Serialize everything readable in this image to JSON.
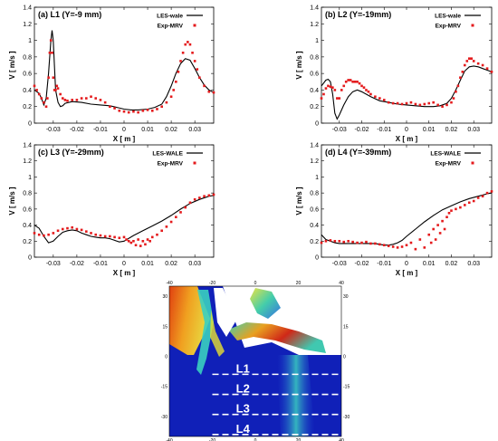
{
  "chart_data": [
    {
      "type": "line",
      "title": "(a) L1 (Y=-9 mm)",
      "xlabel": "X [ m ]",
      "ylabel": "V [ m/s ]",
      "xlim": [
        -0.038,
        0.038
      ],
      "ylim": [
        0,
        1.4
      ],
      "xticks": [
        -0.03,
        -0.02,
        -0.01,
        0,
        0.01,
        0.02,
        0.03
      ],
      "xtick_labels": [
        "-0.03",
        "-0.02",
        "-0.01",
        "0",
        "0.01",
        "0.02",
        "0.03"
      ],
      "yticks": [
        0,
        0.2,
        0.4,
        0.6,
        0.8,
        1,
        1.2,
        1.4
      ],
      "ytick_labels": [
        "0",
        "0.2",
        "0.4",
        "0.6",
        "0.8",
        "1",
        "1.2",
        "1.4"
      ],
      "legend_position": "top-right",
      "series": [
        {
          "name": "LES-wale",
          "style": "line",
          "color": "#000000",
          "x": [
            -0.038,
            -0.036,
            -0.035,
            -0.034,
            -0.033,
            -0.032,
            -0.031,
            -0.0305,
            -0.03,
            -0.0295,
            -0.029,
            -0.028,
            -0.027,
            -0.026,
            -0.025,
            -0.022,
            -0.018,
            -0.014,
            -0.01,
            -0.006,
            -0.003,
            0,
            0.003,
            0.006,
            0.01,
            0.013,
            0.016,
            0.018,
            0.02,
            0.022,
            0.024,
            0.026,
            0.028,
            0.03,
            0.032,
            0.034,
            0.036,
            0.038
          ],
          "y": [
            0.4,
            0.36,
            0.3,
            0.22,
            0.3,
            0.6,
            1.0,
            1.12,
            1.0,
            0.7,
            0.4,
            0.25,
            0.2,
            0.21,
            0.24,
            0.26,
            0.25,
            0.23,
            0.22,
            0.21,
            0.19,
            0.17,
            0.16,
            0.16,
            0.17,
            0.19,
            0.23,
            0.32,
            0.45,
            0.6,
            0.72,
            0.78,
            0.76,
            0.66,
            0.55,
            0.46,
            0.4,
            0.37
          ]
        },
        {
          "name": "Exp-MRV",
          "style": "scatter",
          "color": "#e41a1c",
          "x": [
            -0.038,
            -0.037,
            -0.036,
            -0.035,
            -0.034,
            -0.033,
            -0.0325,
            -0.032,
            -0.0315,
            -0.031,
            -0.0305,
            -0.03,
            -0.0295,
            -0.029,
            -0.0285,
            -0.028,
            -0.027,
            -0.026,
            -0.025,
            -0.024,
            -0.022,
            -0.02,
            -0.018,
            -0.016,
            -0.014,
            -0.012,
            -0.01,
            -0.008,
            -0.006,
            -0.004,
            -0.002,
            0,
            0.002,
            0.004,
            0.006,
            0.008,
            0.01,
            0.012,
            0.014,
            0.016,
            0.018,
            0.02,
            0.021,
            0.022,
            0.023,
            0.024,
            0.025,
            0.026,
            0.027,
            0.028,
            0.029,
            0.03,
            0.031,
            0.032,
            0.034,
            0.036,
            0.038
          ],
          "y": [
            0.45,
            0.4,
            0.35,
            0.3,
            0.25,
            0.2,
            0.3,
            0.55,
            0.85,
            1.0,
            0.85,
            0.55,
            0.4,
            0.4,
            0.45,
            0.42,
            0.35,
            0.3,
            0.28,
            0.27,
            0.28,
            0.28,
            0.3,
            0.3,
            0.32,
            0.3,
            0.28,
            0.25,
            0.2,
            0.18,
            0.15,
            0.14,
            0.13,
            0.14,
            0.13,
            0.15,
            0.16,
            0.15,
            0.17,
            0.2,
            0.25,
            0.32,
            0.4,
            0.5,
            0.62,
            0.75,
            0.85,
            0.95,
            0.98,
            0.95,
            0.85,
            0.75,
            0.65,
            0.55,
            0.45,
            0.38,
            0.37
          ]
        }
      ]
    },
    {
      "type": "line",
      "title": "(b) L2 (Y=-19mm)",
      "xlabel": "X [ m ]",
      "ylabel": "V [ m/s ]",
      "xlim": [
        -0.038,
        0.038
      ],
      "ylim": [
        0,
        1.4
      ],
      "xticks": [
        -0.03,
        -0.02,
        -0.01,
        0,
        0.01,
        0.02,
        0.03
      ],
      "xtick_labels": [
        "-0.03",
        "-0.02",
        "-0.01",
        "0",
        "0.01",
        "0.02",
        "0.03"
      ],
      "yticks": [
        0,
        0.2,
        0.4,
        0.6,
        0.8,
        1,
        1.2,
        1.4
      ],
      "ytick_labels": [
        "0",
        "0.2",
        "0.4",
        "0.6",
        "0.8",
        "1",
        "1.2",
        "1.4"
      ],
      "legend_position": "top-right",
      "series": [
        {
          "name": "LES-wale",
          "style": "line",
          "color": "#000000",
          "x": [
            -0.038,
            -0.036,
            -0.035,
            -0.034,
            -0.033,
            -0.032,
            -0.031,
            -0.03,
            -0.028,
            -0.026,
            -0.024,
            -0.022,
            -0.02,
            -0.016,
            -0.012,
            -0.008,
            -0.004,
            0,
            0.004,
            0.008,
            0.012,
            0.015,
            0.018,
            0.02,
            0.022,
            0.024,
            0.026,
            0.028,
            0.03,
            0.032,
            0.034,
            0.036,
            0.038
          ],
          "y": [
            0.45,
            0.52,
            0.53,
            0.5,
            0.35,
            0.12,
            0.05,
            0.1,
            0.22,
            0.32,
            0.38,
            0.4,
            0.38,
            0.32,
            0.27,
            0.25,
            0.23,
            0.22,
            0.21,
            0.2,
            0.2,
            0.21,
            0.24,
            0.3,
            0.4,
            0.52,
            0.63,
            0.68,
            0.69,
            0.68,
            0.66,
            0.64,
            0.62
          ]
        },
        {
          "name": "Exp-MRV",
          "style": "scatter",
          "color": "#e41a1c",
          "x": [
            -0.038,
            -0.037,
            -0.036,
            -0.035,
            -0.034,
            -0.033,
            -0.032,
            -0.031,
            -0.03,
            -0.029,
            -0.028,
            -0.027,
            -0.026,
            -0.025,
            -0.024,
            -0.023,
            -0.022,
            -0.021,
            -0.02,
            -0.019,
            -0.018,
            -0.017,
            -0.016,
            -0.014,
            -0.012,
            -0.01,
            -0.008,
            -0.006,
            -0.004,
            -0.002,
            0,
            0.002,
            0.004,
            0.006,
            0.008,
            0.01,
            0.012,
            0.014,
            0.016,
            0.018,
            0.02,
            0.021,
            0.022,
            0.023,
            0.024,
            0.025,
            0.026,
            0.027,
            0.028,
            0.029,
            0.03,
            0.032,
            0.034,
            0.036,
            0.038
          ],
          "y": [
            0.3,
            0.35,
            0.42,
            0.45,
            0.44,
            0.43,
            0.4,
            0.3,
            0.3,
            0.4,
            0.45,
            0.5,
            0.52,
            0.52,
            0.5,
            0.5,
            0.5,
            0.48,
            0.45,
            0.43,
            0.4,
            0.38,
            0.35,
            0.32,
            0.3,
            0.28,
            0.25,
            0.24,
            0.24,
            0.23,
            0.24,
            0.25,
            0.23,
            0.22,
            0.23,
            0.24,
            0.25,
            0.22,
            0.2,
            0.22,
            0.25,
            0.3,
            0.38,
            0.45,
            0.55,
            0.62,
            0.7,
            0.75,
            0.78,
            0.78,
            0.75,
            0.72,
            0.7,
            0.66,
            0.62
          ]
        }
      ]
    },
    {
      "type": "line",
      "title": "(c) L3 (Y=-29mm)",
      "xlabel": "X [ m ]",
      "ylabel": "V [ m/s ]",
      "xlim": [
        -0.038,
        0.038
      ],
      "ylim": [
        0,
        1.4
      ],
      "xticks": [
        -0.03,
        -0.02,
        -0.01,
        0,
        0.01,
        0.02,
        0.03
      ],
      "xtick_labels": [
        "-0.03",
        "-0.02",
        "-0.01",
        "0",
        "0.01",
        "0.02",
        "0.03"
      ],
      "yticks": [
        0,
        0.2,
        0.4,
        0.6,
        0.8,
        1,
        1.2,
        1.4
      ],
      "ytick_labels": [
        "0",
        "0.2",
        "0.4",
        "0.6",
        "0.8",
        "1",
        "1.2",
        "1.4"
      ],
      "legend_position": "top-right",
      "series": [
        {
          "name": "LES-WALE",
          "style": "line",
          "color": "#000000",
          "x": [
            -0.038,
            -0.036,
            -0.034,
            -0.032,
            -0.03,
            -0.028,
            -0.026,
            -0.024,
            -0.022,
            -0.02,
            -0.018,
            -0.016,
            -0.014,
            -0.012,
            -0.01,
            -0.008,
            -0.006,
            -0.004,
            -0.002,
            0,
            0.004,
            0.008,
            0.012,
            0.016,
            0.02,
            0.024,
            0.028,
            0.032,
            0.036,
            0.038
          ],
          "y": [
            0.4,
            0.36,
            0.26,
            0.18,
            0.2,
            0.26,
            0.31,
            0.33,
            0.34,
            0.33,
            0.3,
            0.28,
            0.26,
            0.25,
            0.24,
            0.24,
            0.23,
            0.21,
            0.19,
            0.2,
            0.27,
            0.33,
            0.39,
            0.45,
            0.52,
            0.6,
            0.67,
            0.72,
            0.76,
            0.77
          ]
        },
        {
          "name": "Exp-MRV",
          "style": "scatter",
          "color": "#e41a1c",
          "x": [
            -0.038,
            -0.036,
            -0.034,
            -0.032,
            -0.03,
            -0.028,
            -0.026,
            -0.024,
            -0.022,
            -0.02,
            -0.018,
            -0.016,
            -0.014,
            -0.012,
            -0.01,
            -0.008,
            -0.006,
            -0.004,
            -0.002,
            0,
            0.001,
            0.002,
            0.003,
            0.004,
            0.005,
            0.006,
            0.007,
            0.008,
            0.009,
            0.01,
            0.011,
            0.012,
            0.014,
            0.016,
            0.018,
            0.02,
            0.022,
            0.024,
            0.026,
            0.028,
            0.03,
            0.032,
            0.034,
            0.036,
            0.038
          ],
          "y": [
            0.3,
            0.28,
            0.27,
            0.28,
            0.3,
            0.33,
            0.35,
            0.36,
            0.37,
            0.35,
            0.34,
            0.32,
            0.3,
            0.28,
            0.27,
            0.26,
            0.26,
            0.25,
            0.24,
            0.25,
            0.22,
            0.2,
            0.18,
            0.2,
            0.15,
            0.22,
            0.14,
            0.2,
            0.16,
            0.22,
            0.2,
            0.25,
            0.28,
            0.33,
            0.38,
            0.44,
            0.5,
            0.56,
            0.62,
            0.68,
            0.72,
            0.74,
            0.76,
            0.77,
            0.78
          ]
        }
      ]
    },
    {
      "type": "line",
      "title": "(d) L4 (Y=-39mm)",
      "xlabel": "X [ m ]",
      "ylabel": "V [ m/s ]",
      "xlim": [
        -0.038,
        0.038
      ],
      "ylim": [
        0,
        1.4
      ],
      "xticks": [
        -0.03,
        -0.02,
        -0.01,
        0,
        0.01,
        0.02,
        0.03
      ],
      "xtick_labels": [
        "-0.03",
        "-0.02",
        "-0.01",
        "0",
        "0.01",
        "0.02",
        "0.03"
      ],
      "yticks": [
        0,
        0.2,
        0.4,
        0.6,
        0.8,
        1,
        1.2,
        1.4
      ],
      "ytick_labels": [
        "0",
        "0.2",
        "0.4",
        "0.6",
        "0.8",
        "1",
        "1.2",
        "1.4"
      ],
      "legend_position": "top-right",
      "series": [
        {
          "name": "LES-WALE",
          "style": "line",
          "color": "#000000",
          "x": [
            -0.038,
            -0.036,
            -0.034,
            -0.032,
            -0.03,
            -0.028,
            -0.026,
            -0.024,
            -0.022,
            -0.02,
            -0.018,
            -0.016,
            -0.014,
            -0.012,
            -0.01,
            -0.008,
            -0.006,
            -0.004,
            -0.002,
            0,
            0.004,
            0.008,
            0.012,
            0.016,
            0.02,
            0.024,
            0.028,
            0.032,
            0.036,
            0.038
          ],
          "y": [
            0.28,
            0.22,
            0.2,
            0.18,
            0.17,
            0.17,
            0.17,
            0.17,
            0.17,
            0.17,
            0.17,
            0.17,
            0.17,
            0.16,
            0.15,
            0.15,
            0.16,
            0.18,
            0.21,
            0.26,
            0.35,
            0.44,
            0.52,
            0.59,
            0.64,
            0.69,
            0.73,
            0.76,
            0.79,
            0.8
          ]
        },
        {
          "name": "Exp-MRV",
          "style": "scatter",
          "color": "#e41a1c",
          "x": [
            -0.038,
            -0.036,
            -0.034,
            -0.032,
            -0.03,
            -0.028,
            -0.026,
            -0.024,
            -0.022,
            -0.02,
            -0.018,
            -0.016,
            -0.014,
            -0.012,
            -0.01,
            -0.008,
            -0.006,
            -0.004,
            -0.002,
            0,
            0.002,
            0.004,
            0.006,
            0.008,
            0.01,
            0.011,
            0.012,
            0.013,
            0.014,
            0.015,
            0.016,
            0.017,
            0.018,
            0.019,
            0.02,
            0.022,
            0.024,
            0.026,
            0.028,
            0.03,
            0.032,
            0.034,
            0.036,
            0.038
          ],
          "y": [
            0.18,
            0.2,
            0.21,
            0.2,
            0.2,
            0.19,
            0.2,
            0.19,
            0.18,
            0.18,
            0.19,
            0.17,
            0.17,
            0.16,
            0.15,
            0.14,
            0.13,
            0.12,
            0.13,
            0.15,
            0.18,
            0.1,
            0.22,
            0.12,
            0.28,
            0.18,
            0.35,
            0.22,
            0.4,
            0.3,
            0.45,
            0.35,
            0.5,
            0.55,
            0.58,
            0.6,
            0.62,
            0.65,
            0.68,
            0.7,
            0.74,
            0.76,
            0.8,
            0.82
          ]
        }
      ]
    },
    {
      "type": "heatmap",
      "xlim": [
        -40,
        40
      ],
      "ylim": [
        -40,
        35
      ],
      "xticks": [
        -40,
        -20,
        0,
        20,
        40
      ],
      "xtick_labels": [
        "-40",
        "-20",
        "0",
        "20",
        "40"
      ],
      "yticks": [
        30,
        15,
        0,
        -15,
        -30
      ],
      "ytick_labels": [
        "30",
        "15",
        "0",
        "-15",
        "-30"
      ],
      "grid": false,
      "lines": [
        {
          "label": "L1",
          "y": -9
        },
        {
          "label": "L2",
          "y": -19
        },
        {
          "label": "L3",
          "y": -29
        },
        {
          "label": "L4",
          "y": -39
        }
      ],
      "colors": {
        "low": "#1020b8",
        "mid": "#30d8c0",
        "high": "#d02010",
        "line": "#ffffff"
      }
    }
  ]
}
